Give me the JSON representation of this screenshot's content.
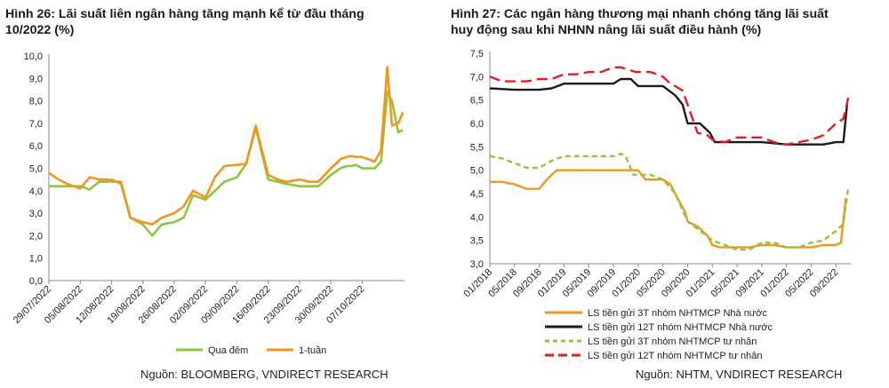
{
  "chart_data": [
    {
      "type": "line",
      "title_line1": "Hình 26: Lãi suất liên ngân hàng tăng mạnh kể từ đầu tháng",
      "title_line2": "10/2022 (%)",
      "ylim": [
        0,
        10
      ],
      "yticks": [
        "0,0",
        "1,0",
        "2,0",
        "3,0",
        "4,0",
        "5,0",
        "6,0",
        "7,0",
        "8,0",
        "9,0",
        "10,0"
      ],
      "grid": false,
      "legend": "bottom",
      "categories": [
        "29/07/2022",
        "05/08/2022",
        "12/08/2022",
        "19/08/2022",
        "26/08/2022",
        "02/09/2022",
        "09/09/2022",
        "16/09/2022",
        "23/09/2022",
        "30/09/2022",
        "07/10/2022"
      ],
      "source": "Nguồn: BLOOMBERG, VNDIRECT RESEARCH",
      "series": [
        {
          "name": "Qua đêm",
          "color": "#8dc63f",
          "x": [
            0,
            0.3,
            0.6,
            1,
            1.3,
            1.6,
            1.9,
            2,
            2.3,
            2.6,
            3,
            3.3,
            3.6,
            4,
            4.3,
            4.6,
            5,
            5.3,
            5.6,
            6,
            6.3,
            6.6,
            7,
            7.3,
            7.6,
            8,
            8.3,
            8.6,
            9,
            9.3,
            9.5,
            9.65,
            9.8,
            10,
            10.2,
            10.4,
            10.6,
            10.8,
            10.95,
            11.15,
            11.3
          ],
          "values": [
            4.2,
            4.2,
            4.2,
            4.2,
            4.05,
            4.4,
            4.4,
            4.5,
            4.3,
            2.8,
            2.5,
            2.0,
            2.5,
            2.6,
            2.8,
            3.8,
            3.6,
            4.0,
            4.4,
            4.6,
            5.2,
            6.8,
            4.5,
            4.4,
            4.3,
            4.2,
            4.2,
            4.2,
            4.7,
            5.0,
            5.1,
            5.1,
            5.15,
            5.0,
            5.0,
            5.0,
            5.3,
            8.4,
            8.0,
            6.6,
            6.7
          ]
        },
        {
          "name": "1-tuần",
          "color": "#f7941d",
          "x": [
            0,
            0.3,
            0.6,
            1,
            1.3,
            1.6,
            1.9,
            2,
            2.3,
            2.6,
            3,
            3.3,
            3.6,
            4,
            4.3,
            4.6,
            5,
            5.3,
            5.6,
            6,
            6.3,
            6.6,
            7,
            7.3,
            7.6,
            8,
            8.3,
            8.6,
            9,
            9.3,
            9.5,
            9.65,
            9.8,
            10,
            10.2,
            10.4,
            10.6,
            10.8,
            10.95,
            11.15,
            11.3
          ],
          "values": [
            4.8,
            4.5,
            4.3,
            4.1,
            4.6,
            4.5,
            4.5,
            4.4,
            4.4,
            2.8,
            2.6,
            2.5,
            2.8,
            3.0,
            3.3,
            4.0,
            3.7,
            4.6,
            5.1,
            5.15,
            5.2,
            6.9,
            4.7,
            4.5,
            4.4,
            4.5,
            4.4,
            4.4,
            5.0,
            5.4,
            5.5,
            5.55,
            5.5,
            5.5,
            5.4,
            5.3,
            5.8,
            9.5,
            6.9,
            7.0,
            7.5
          ]
        }
      ]
    },
    {
      "type": "line",
      "title_line1": "Hình 27: Các ngân hàng thương mại nhanh chóng tăng lãi suất",
      "title_line2": "huy động sau khi NHNN nâng lãi suất điều hành (%)",
      "ylim": [
        3.0,
        7.5
      ],
      "yticks": [
        "3,0",
        "3,5",
        "4,0",
        "4,5",
        "5,0",
        "5,5",
        "6,0",
        "6,5",
        "7,0",
        "7,5"
      ],
      "grid": false,
      "legend": "bottom",
      "categories": [
        "01/2018",
        "05/2018",
        "09/2018",
        "01/2019",
        "05/2019",
        "09/2019",
        "01/2020",
        "05/2020",
        "09/2020",
        "01/2021",
        "05/2021",
        "09/2021",
        "01/2022",
        "05/2022",
        "09/2022"
      ],
      "source": "Nguồn: NHTM, VNDIRECT RESEARCH",
      "series": [
        {
          "name": "LS tiền gửi 3T nhóm NHTMCP Nhà nước",
          "color": "#f7941d",
          "style": "solid",
          "x": [
            0,
            0.5,
            1,
            1.5,
            2,
            2.3,
            2.7,
            3,
            4,
            5,
            5.5,
            6,
            6.3,
            6.7,
            7,
            7.3,
            7.6,
            7.9,
            8,
            8.4,
            8.8,
            9,
            9.3,
            9.6,
            10,
            10.5,
            11,
            11.5,
            12,
            13,
            13.5,
            14,
            14.2,
            14.4
          ],
          "values": [
            4.75,
            4.75,
            4.7,
            4.6,
            4.6,
            4.8,
            5.0,
            5.0,
            5.0,
            5.0,
            5.0,
            5.0,
            4.8,
            4.8,
            4.8,
            4.7,
            4.4,
            4.1,
            3.9,
            3.8,
            3.6,
            3.4,
            3.35,
            3.35,
            3.35,
            3.35,
            3.4,
            3.4,
            3.35,
            3.35,
            3.4,
            3.4,
            3.45,
            4.4
          ]
        },
        {
          "name": "LS tiền gửi 12T nhóm NHTMCP Nhà nước",
          "color": "#1a1a1a",
          "style": "solid",
          "x": [
            0,
            1,
            2,
            2.5,
            3,
            4,
            4.5,
            5,
            5.3,
            5.7,
            6,
            6.5,
            7,
            7.5,
            7.8,
            8,
            8.5,
            8.7,
            8.9,
            9.1,
            9.3,
            10,
            11,
            12,
            13,
            13.5,
            14,
            14.3,
            14.45
          ],
          "values": [
            6.75,
            6.72,
            6.72,
            6.75,
            6.85,
            6.85,
            6.85,
            6.85,
            6.95,
            6.95,
            6.8,
            6.8,
            6.8,
            6.6,
            6.4,
            6.0,
            6.0,
            5.9,
            5.8,
            5.6,
            5.6,
            5.6,
            5.6,
            5.55,
            5.55,
            5.55,
            5.6,
            5.6,
            6.4
          ]
        },
        {
          "name": "LS tiền gửi 3T nhóm NHTMCP tư nhân",
          "color": "#8dc63f",
          "style": "dash",
          "x": [
            0,
            0.5,
            1,
            1.5,
            2,
            2.5,
            3,
            3.5,
            4,
            4.5,
            5,
            5.3,
            5.5,
            5.8,
            6,
            6.5,
            7,
            7.5,
            8,
            8.5,
            9,
            9.5,
            10,
            10.5,
            11,
            11.5,
            12,
            12.5,
            13,
            13.5,
            14,
            14.3,
            14.5
          ],
          "values": [
            5.3,
            5.25,
            5.15,
            5.05,
            5.05,
            5.2,
            5.3,
            5.3,
            5.3,
            5.3,
            5.3,
            5.35,
            5.3,
            4.9,
            4.9,
            4.9,
            4.8,
            4.5,
            3.9,
            3.7,
            3.5,
            3.4,
            3.3,
            3.3,
            3.45,
            3.45,
            3.35,
            3.35,
            3.45,
            3.5,
            3.7,
            3.85,
            4.65
          ]
        },
        {
          "name": "LS tiền gửi 12T nhóm NHTMCP tư nhân",
          "color": "#e31e24",
          "style": "dash",
          "x": [
            0,
            0.5,
            1,
            1.5,
            2,
            2.5,
            3,
            3.5,
            4,
            4.5,
            5,
            5.3,
            5.6,
            5.9,
            6.2,
            6.5,
            7,
            7.3,
            7.5,
            7.8,
            8,
            8.4,
            8.8,
            9,
            9.5,
            10,
            10.5,
            11,
            11.5,
            12,
            12.5,
            13,
            13.5,
            14,
            14.3,
            14.5
          ],
          "values": [
            7.0,
            6.9,
            6.9,
            6.9,
            6.95,
            6.95,
            7.05,
            7.05,
            7.1,
            7.1,
            7.2,
            7.2,
            7.15,
            7.1,
            7.1,
            7.1,
            7.0,
            6.85,
            6.8,
            6.7,
            6.4,
            5.8,
            5.75,
            5.65,
            5.6,
            5.7,
            5.7,
            5.7,
            5.6,
            5.55,
            5.6,
            5.65,
            5.75,
            6.0,
            6.1,
            6.55
          ]
        }
      ]
    }
  ]
}
